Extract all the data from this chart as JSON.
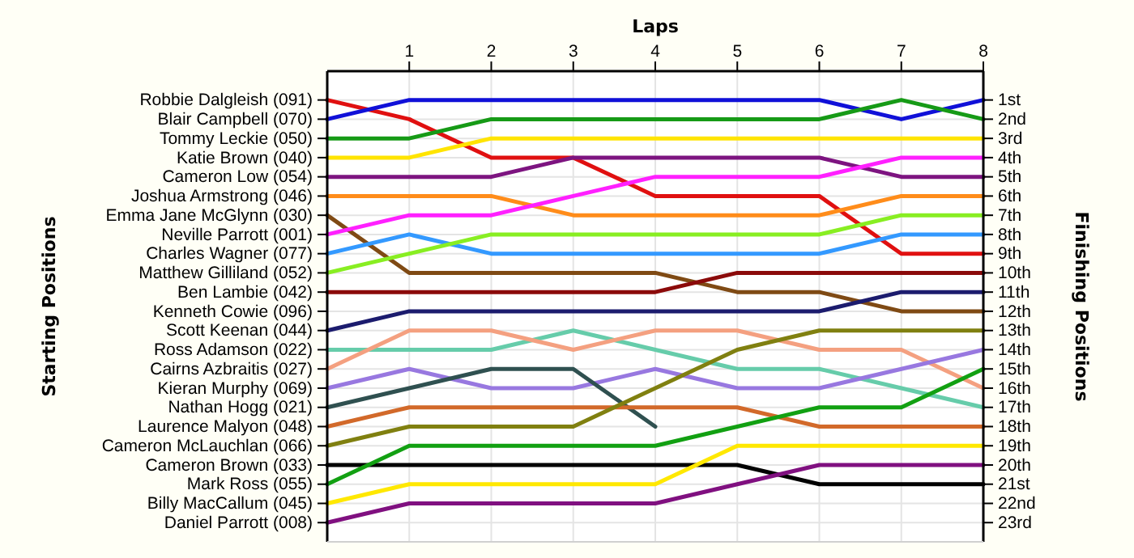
{
  "chart_data": {
    "type": "line",
    "xlabel": "Laps",
    "annotations": [
      "Starting Positions"
    ],
    "y2label": "Finishing Positions",
    "x": [
      0,
      1,
      2,
      3,
      4,
      5,
      6,
      7,
      8
    ],
    "xlim": [
      0,
      8
    ],
    "xticks": [
      1,
      2,
      3,
      4,
      5,
      6,
      7,
      8
    ],
    "y_categories": [
      "Robbie Dalgleish (091)",
      "Blair Campbell (070)",
      "Tommy Leckie (050)",
      "Katie Brown (040)",
      "Cameron Low (054)",
      "Joshua Armstrong (046)",
      "Emma Jane McGlynn (030)",
      "Neville Parrott (001)",
      "Charles Wagner (077)",
      "Matthew Gilliland (052)",
      "Ben Lambie (042)",
      "Kenneth Cowie (096)",
      "Scott Keenan (044)",
      "Ross Adamson (022)",
      "Cairns Azbraitis (027)",
      "Kieran Murphy (069)",
      "Nathan Hogg (021)",
      "Laurence Malyon (048)",
      "Cameron McLauchlan (066)",
      "Cameron Brown (033)",
      "Mark Ross (055)",
      "Billy MacCallum (045)",
      "Daniel Parrott (008)"
    ],
    "y2lim": [
      24,
      -0.5
    ],
    "y2ticks": [
      {
        "value": 1,
        "label": "1st"
      },
      {
        "value": 2,
        "label": "2nd"
      },
      {
        "value": 3,
        "label": "3rd"
      },
      {
        "value": 4,
        "label": "4th"
      },
      {
        "value": 5,
        "label": "5th"
      },
      {
        "value": 6,
        "label": "6th"
      },
      {
        "value": 7,
        "label": "7th"
      },
      {
        "value": 8,
        "label": "8th"
      },
      {
        "value": 9,
        "label": "9th"
      },
      {
        "value": 10,
        "label": "10th"
      },
      {
        "value": 11,
        "label": "11th"
      },
      {
        "value": 12,
        "label": "12th"
      },
      {
        "value": 13,
        "label": "13th"
      },
      {
        "value": 14,
        "label": "14th"
      },
      {
        "value": 15,
        "label": "15th"
      },
      {
        "value": 16,
        "label": "16th"
      },
      {
        "value": 17,
        "label": "17th"
      },
      {
        "value": 18,
        "label": "18th"
      },
      {
        "value": 19,
        "label": "19th"
      },
      {
        "value": 20,
        "label": "20th"
      },
      {
        "value": 21,
        "label": "21st"
      },
      {
        "value": 22,
        "label": "22nd"
      },
      {
        "value": 23,
        "label": "23rd"
      }
    ],
    "grid": true,
    "marker": "none",
    "line_style": "solid",
    "series": [
      {
        "axis": "y2",
        "color": "#e01010",
        "values": [
          1,
          2,
          4,
          4,
          6,
          6,
          6,
          9,
          9
        ]
      },
      {
        "axis": "y2",
        "color": "#1010d8",
        "values": [
          2,
          1,
          1,
          1,
          1,
          1,
          1,
          2,
          1
        ]
      },
      {
        "axis": "y2",
        "color": "#169a16",
        "values": [
          3,
          3,
          2,
          2,
          2,
          2,
          2,
          1,
          2
        ]
      },
      {
        "axis": "y2",
        "color": "#ffe400",
        "values": [
          4,
          4,
          3,
          3,
          3,
          3,
          3,
          3,
          3
        ]
      },
      {
        "axis": "y2",
        "color": "#7d1480",
        "values": [
          5,
          5,
          5,
          4,
          4,
          4,
          4,
          5,
          5
        ]
      },
      {
        "axis": "y2",
        "color": "#ff8c1a",
        "values": [
          6,
          6,
          6,
          7,
          7,
          7,
          7,
          6,
          6
        ]
      },
      {
        "axis": "y2",
        "color": "#7f4a14",
        "values": [
          7,
          10,
          10,
          10,
          10,
          11,
          11,
          12,
          12
        ]
      },
      {
        "axis": "y2",
        "color": "#ff20ff",
        "values": [
          8,
          7,
          7,
          6,
          5,
          5,
          5,
          4,
          4
        ]
      },
      {
        "axis": "y2",
        "color": "#3399ff",
        "values": [
          9,
          8,
          9,
          9,
          9,
          9,
          9,
          8,
          8
        ]
      },
      {
        "axis": "y2",
        "color": "#88ee22",
        "values": [
          10,
          9,
          8,
          8,
          8,
          8,
          8,
          7,
          7
        ]
      },
      {
        "axis": "y2",
        "color": "#8b0a0a",
        "values": [
          11,
          11,
          11,
          11,
          11,
          10,
          10,
          10,
          10
        ]
      },
      {
        "axis": "y2",
        "color": "#1c1c6e",
        "values": [
          13,
          12,
          12,
          12,
          12,
          12,
          12,
          11,
          11
        ]
      },
      {
        "axis": "y2",
        "color": "#66ccaa",
        "values": [
          14,
          14,
          14,
          13,
          14,
          15,
          15,
          16,
          17
        ]
      },
      {
        "axis": "y2",
        "color": "#f4a080",
        "values": [
          15,
          13,
          13,
          14,
          13,
          13,
          14,
          14,
          16
        ]
      },
      {
        "axis": "y2",
        "color": "#9878e0",
        "values": [
          16,
          15,
          16,
          16,
          15,
          16,
          16,
          15,
          14
        ]
      },
      {
        "axis": "y2",
        "color": "#2f5050",
        "values": [
          17,
          16,
          15,
          15,
          18,
          null,
          null,
          null,
          null
        ]
      },
      {
        "axis": "y2",
        "color": "#d2692a",
        "values": [
          18,
          17,
          17,
          17,
          17,
          17,
          18,
          18,
          18
        ]
      },
      {
        "axis": "y2",
        "color": "#808010",
        "values": [
          19,
          18,
          18,
          18,
          16,
          14,
          13,
          13,
          13
        ]
      },
      {
        "axis": "y2",
        "color": "#000000",
        "values": [
          20,
          20,
          20,
          20,
          20,
          20,
          21,
          21,
          21
        ]
      },
      {
        "axis": "y2",
        "color": "#12a012",
        "values": [
          21,
          19,
          19,
          19,
          19,
          18,
          17,
          17,
          15
        ]
      },
      {
        "axis": "y2",
        "color": "#ffe800",
        "values": [
          22,
          21,
          21,
          21,
          21,
          19,
          19,
          19,
          19
        ]
      },
      {
        "axis": "y2",
        "color": "#801080",
        "values": [
          23,
          22,
          22,
          22,
          22,
          21,
          20,
          20,
          20
        ]
      }
    ]
  }
}
